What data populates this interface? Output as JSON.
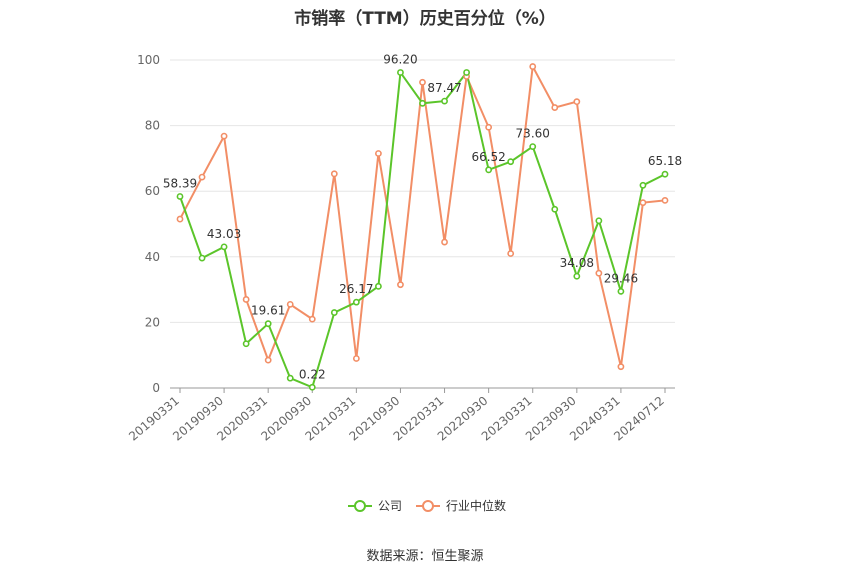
{
  "chart_data": {
    "type": "line",
    "title": "市销率（TTM）历史百分位（%）",
    "ylim": [
      0,
      100
    ],
    "yticks": [
      0,
      20,
      40,
      60,
      80,
      100
    ],
    "x_tick_labels": [
      "20190331",
      "20190930",
      "20200331",
      "20200930",
      "20210331",
      "20210930",
      "20220331",
      "20220930",
      "20230331",
      "20230930",
      "20240331",
      "20240712"
    ],
    "x": [
      "20190331",
      "20190630",
      "20190930",
      "20191231",
      "20200331",
      "20200630",
      "20200930",
      "20201231",
      "20210331",
      "20210630",
      "20210930",
      "20211231",
      "20220331",
      "20220630",
      "20220930",
      "20221231",
      "20230331",
      "20230630",
      "20230930",
      "20231231",
      "20240331",
      "20240630",
      "20240712"
    ],
    "series": [
      {
        "name": "公司",
        "color": "#5bc52a",
        "values": [
          58.39,
          39.6,
          43.03,
          13.5,
          19.61,
          3.0,
          0.22,
          23.0,
          26.17,
          31.0,
          96.2,
          86.8,
          87.47,
          96.2,
          66.52,
          69.0,
          73.6,
          54.5,
          34.08,
          51.0,
          29.46,
          61.8,
          65.18
        ],
        "labels": {
          "0": "58.39",
          "2": "43.03",
          "4": "19.61",
          "6": "0.22",
          "8": "26.17",
          "10": "96.20",
          "12": "87.47",
          "14": "66.52",
          "16": "73.60",
          "18": "34.08",
          "20": "29.46",
          "22": "65.18"
        }
      },
      {
        "name": "行业中位数",
        "color": "#f28e66",
        "values": [
          51.5,
          64.3,
          76.8,
          27.0,
          8.5,
          25.5,
          21.0,
          65.3,
          9.0,
          71.5,
          31.5,
          93.2,
          44.5,
          95.0,
          79.5,
          41.0,
          98.0,
          85.5,
          87.3,
          35.0,
          6.5,
          56.5,
          57.2
        ]
      }
    ],
    "grid": true,
    "legend_position": "bottom-center"
  },
  "footer": {
    "source": "数据来源：恒生聚源"
  }
}
